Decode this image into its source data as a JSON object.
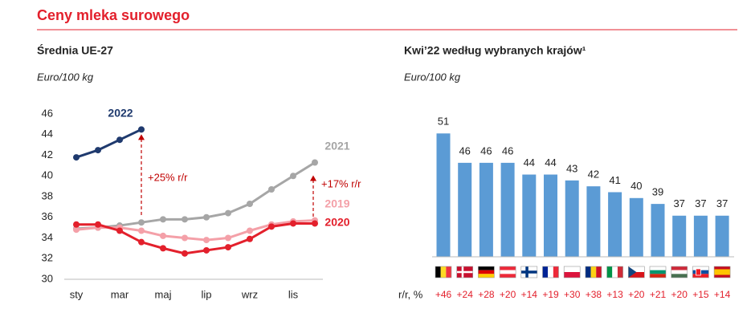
{
  "title": "Ceny mleka surowego",
  "chart_data": [
    {
      "type": "line",
      "title": "Średnia UE-27",
      "subtitle": "Euro/100 kg",
      "categories": [
        "sty",
        null,
        "mar",
        null,
        "maj",
        null,
        "lip",
        null,
        "wrz",
        null,
        "lis",
        null
      ],
      "ylim": [
        30,
        46
      ],
      "yticks": [
        30,
        32,
        34,
        36,
        38,
        40,
        42,
        44,
        46
      ],
      "grid": false,
      "series": [
        {
          "name": "2021",
          "color": "#a6a6a6",
          "values": [
            34.9,
            35.0,
            35.2,
            35.5,
            35.8,
            35.8,
            36.0,
            36.4,
            37.3,
            38.7,
            40.0,
            41.3
          ]
        },
        {
          "name": "2019",
          "color": "#f4a0a8",
          "values": [
            34.8,
            35.0,
            35.0,
            34.7,
            34.2,
            34.0,
            33.8,
            34.0,
            34.7,
            35.3,
            35.6,
            35.7
          ]
        },
        {
          "name": "2020",
          "color": "#e3202c",
          "values": [
            35.3,
            35.3,
            34.7,
            33.6,
            33.0,
            32.5,
            32.8,
            33.1,
            33.9,
            35.1,
            35.4,
            35.4
          ]
        },
        {
          "name": "2022",
          "color": "#1f3a6e",
          "values": [
            41.8,
            42.5,
            43.5,
            44.5,
            null,
            null,
            null,
            null,
            null,
            null,
            null,
            null
          ]
        }
      ],
      "annotations": [
        "+25% r/r",
        "+17% r/r"
      ]
    },
    {
      "type": "bar",
      "title": "Kwi’22 według wybranych krajów¹",
      "subtitle": "Euro/100 kg",
      "categories": [
        null,
        null,
        null,
        null,
        null,
        null,
        null,
        null,
        null,
        null,
        null,
        null,
        null,
        null
      ],
      "values": [
        51,
        46,
        46,
        46,
        44,
        44,
        43,
        42,
        41,
        40,
        39,
        37,
        37,
        37
      ],
      "color": "#5b9bd5",
      "ylim": [
        30,
        55
      ],
      "yoy_label": "r/r, %",
      "yoy": [
        "+46",
        "+24",
        "+28",
        "+20",
        "+14",
        "+19",
        "+30",
        "+38",
        "+13",
        "+20",
        "+21",
        "+20",
        "+15",
        "+14"
      ]
    }
  ]
}
